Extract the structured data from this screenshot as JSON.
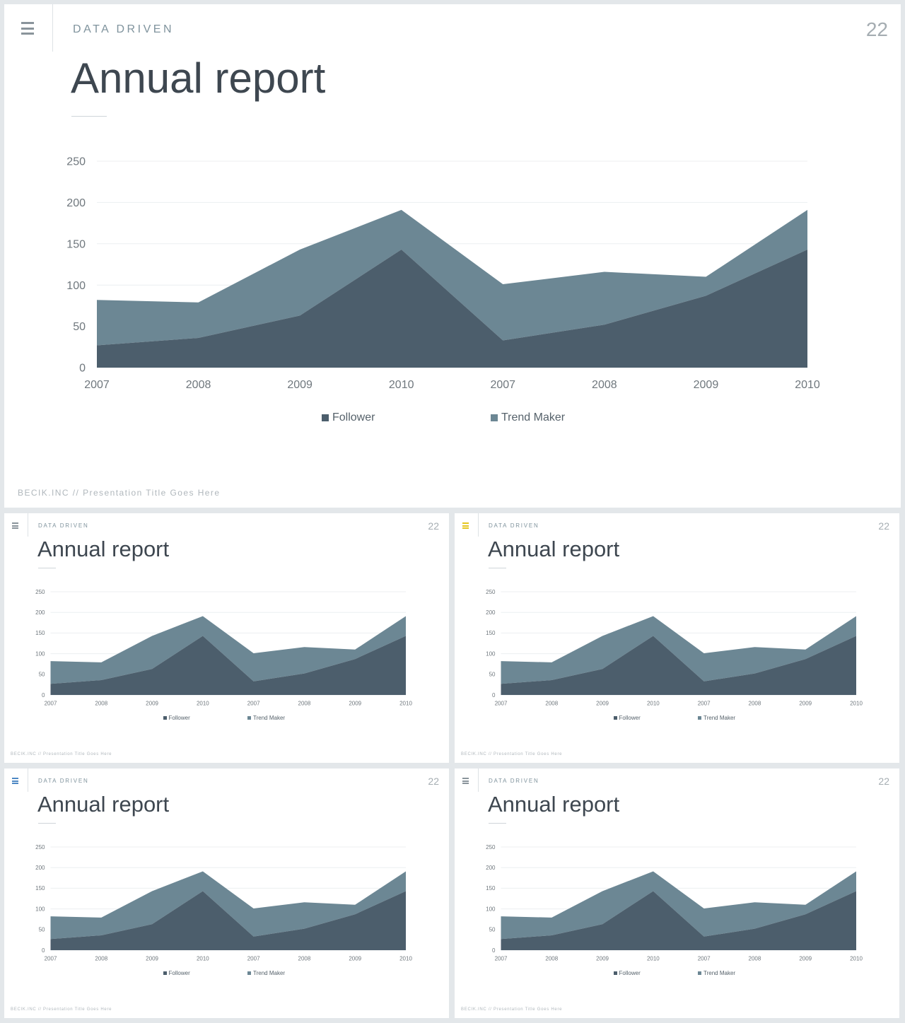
{
  "slide": {
    "kicker": "DATA DRIVEN",
    "page_number": "22",
    "title": "Annual report",
    "footer": "BECIK.INC  //  Presentation  Title  Goes  Here",
    "menu_icon": "menu-icon",
    "menu_icon_colors": [
      "#8a949b",
      "#8a949b",
      "#e5c620",
      "#4d88c4",
      "#8a949b"
    ]
  },
  "colors": {
    "follower": "#4c5e6c",
    "trend_maker": "#6c8794",
    "grid": "#eceff1",
    "tick_text": "#6f777d"
  },
  "chart_data": {
    "type": "area",
    "stacked": true,
    "categories": [
      "2007",
      "2008",
      "2009",
      "2010",
      "2007",
      "2008",
      "2009",
      "2010"
    ],
    "series": [
      {
        "name": "Follower",
        "values": [
          27,
          36,
          63,
          143,
          33,
          52,
          87,
          143
        ]
      },
      {
        "name": "Trend Maker",
        "values": [
          55,
          43,
          80,
          48,
          68,
          64,
          23,
          48
        ]
      }
    ],
    "y_ticks": [
      "0",
      "50",
      "100",
      "150",
      "200",
      "250"
    ],
    "ylim": [
      0,
      250
    ],
    "grid": true,
    "legend": "bottom-center"
  }
}
